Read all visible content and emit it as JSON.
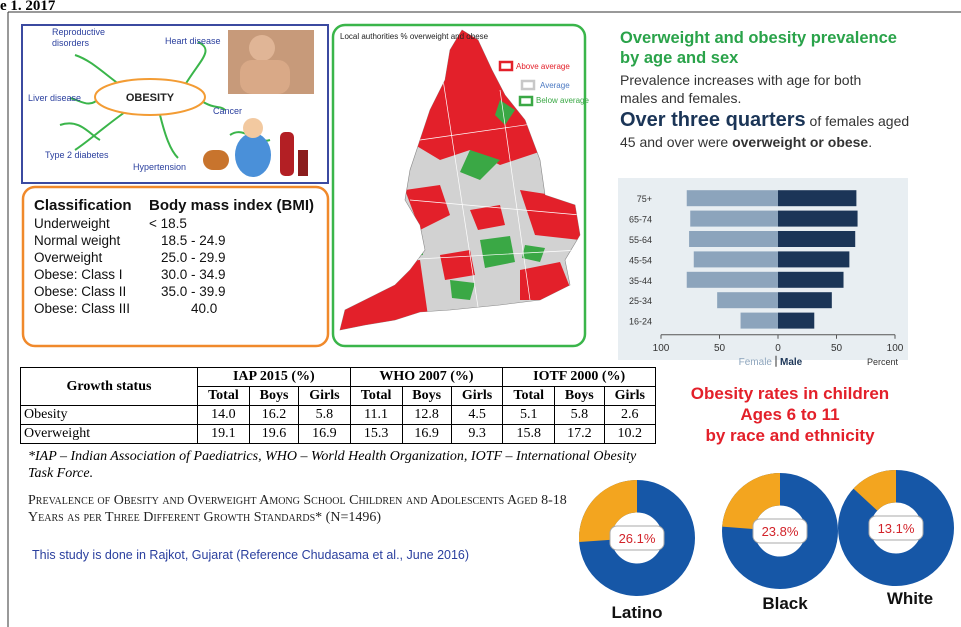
{
  "header": {
    "fragment": "e 1. 2017"
  },
  "obesity_diagram": {
    "center": "OBESITY",
    "conditions": [
      "Reproductive disorders",
      "Heart disease",
      "Liver disease",
      "Cancer",
      "Type 2 diabetes",
      "Hypertension"
    ]
  },
  "bmi_table": {
    "headers": [
      "Classification",
      "Body mass index (BMI)"
    ],
    "rows": [
      [
        "Underweight",
        "< 18.5"
      ],
      [
        "Normal weight",
        "18.5 - 24.9"
      ],
      [
        "Overweight",
        "25.0 - 29.9"
      ],
      [
        "Obese: Class I",
        "30.0 - 34.9"
      ],
      [
        "Obese: Class II",
        "35.0 - 39.9"
      ],
      [
        "Obese: Class III",
        "40.0"
      ]
    ]
  },
  "map": {
    "title": "Local authorities % overweight and obese",
    "legend": [
      "Above average",
      "Average",
      "Below average"
    ]
  },
  "prevalence": {
    "title": "Overweight and obesity prevalence by age and sex",
    "text": "Prevalence increases with age for both males and females.",
    "highlight": "Over three quarters",
    "text2": "of females aged 45 and over were",
    "bold2": "overweight or obese",
    "end": "."
  },
  "chart_data": {
    "type": "bar",
    "categories": [
      "75+",
      "65-74",
      "55-64",
      "45-54",
      "35-44",
      "25-34",
      "16-24"
    ],
    "series": [
      {
        "name": "Female",
        "color": "#8ca4bc",
        "values": [
          78,
          75,
          76,
          72,
          78,
          52,
          32
        ]
      },
      {
        "name": "Male",
        "color": "#1b3557",
        "values": [
          67,
          68,
          66,
          61,
          56,
          46,
          31
        ]
      }
    ],
    "xlim": [
      -100,
      100
    ],
    "xticks": [
      {
        "value": -100,
        "label": "100"
      },
      {
        "value": -50,
        "label": "50"
      },
      0,
      50,
      100
    ],
    "xlabel": "Percent"
  },
  "growth_table": {
    "header": "Growth status",
    "groups": [
      "IAP 2015  (%)",
      "WHO 2007  (%)",
      "IOTF 2000 (%)"
    ],
    "subheaders": [
      "Total",
      "Boys",
      "Girls",
      "Total",
      "Boys",
      "Girls",
      "Total",
      "Boys",
      "Girls"
    ],
    "rows": [
      [
        "Obesity",
        "14.0",
        "16.2",
        "5.8",
        "11.1",
        "12.8",
        "4.5",
        "5.1",
        "5.8",
        "2.6"
      ],
      [
        "Overweight",
        "19.1",
        "19.6",
        "16.9",
        "15.3",
        "16.9",
        "9.3",
        "15.8",
        "17.2",
        "10.2"
      ]
    ]
  },
  "footnote": "*IAP – Indian Association of Paediatrics, WHO – World Health Organization, IOTF – International Obesity Task Force.",
  "caption": "Prevalence of Obesity and Overweight Among School Children and Adolescents Aged 8-18 Years as per Three Different Growth Standards* (N=1496)",
  "note": "This study is done in Rajkot, Gujarat (Reference Chudasama et al., June 2016)",
  "donuts": {
    "type": "pie",
    "title": [
      "Obesity rates in children",
      "Ages 6 to 11",
      "by race and ethnicity"
    ],
    "categories": [
      "Latino",
      "Black",
      "White"
    ],
    "values": [
      26.1,
      23.8,
      13.1
    ],
    "value_labels": [
      "26.1%",
      "23.8%",
      "13.1%"
    ],
    "color": "#f3a51f"
  }
}
